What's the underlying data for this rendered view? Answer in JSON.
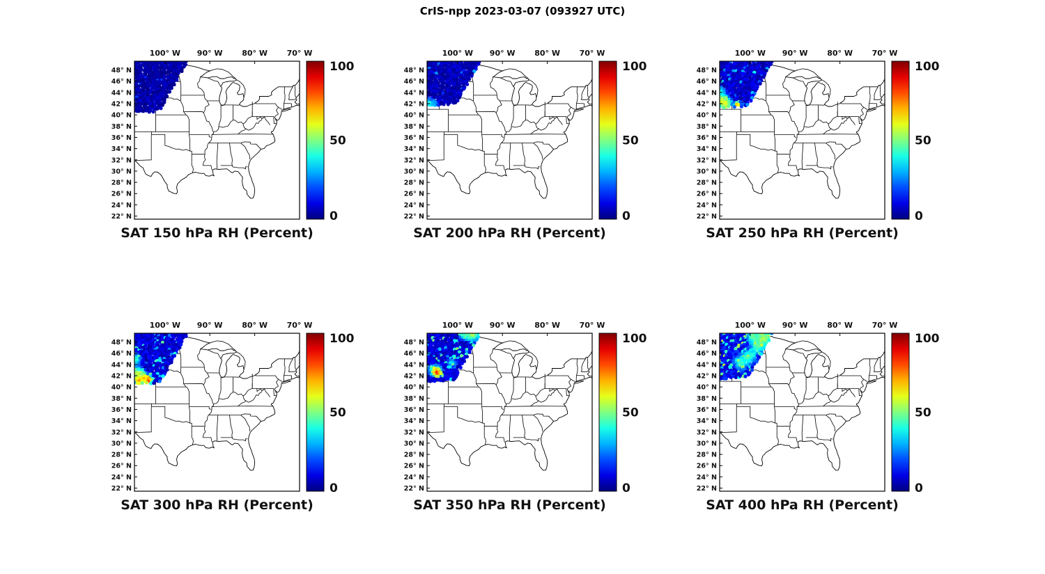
{
  "figure": {
    "title": "CrIS-npp 2023-03-07 (093927 UTC)",
    "background": "#ffffff"
  },
  "chart_data": {
    "type": "scatter",
    "variable": "RH (Percent)",
    "levels_hPa": [
      150,
      200,
      250,
      300,
      350,
      400
    ],
    "map": {
      "lon_range_deg": [
        -106.8,
        -70.0
      ],
      "lat_range_deg": [
        21.45,
        49.55
      ],
      "x_tick_lons": [
        -100,
        -90,
        -80,
        -70
      ],
      "x_tick_labels": [
        "100° W",
        "90° W",
        "80° W",
        "70° W"
      ],
      "y_tick_lats": [
        48,
        46,
        44,
        42,
        40,
        38,
        36,
        34,
        32,
        30,
        28,
        26,
        24,
        22
      ],
      "y_tick_labels": [
        "48° N",
        "46° N",
        "44° N",
        "42° N",
        "40° N",
        "38° N",
        "36° N",
        "34° N",
        "32° N",
        "30° N",
        "28° N",
        "26° N",
        "24° N",
        "22° N"
      ]
    },
    "colorbar": {
      "min": 0,
      "max": 100,
      "tick_labels": [
        "100",
        "50",
        "0"
      ],
      "colormap": "jet"
    },
    "panels": [
      {
        "pressure_hPa": 150,
        "title": "SAT 150 hPa RH (Percent)",
        "swath": {
          "lat_min": 40.3,
          "background_rh": [
            1,
            8
          ],
          "speckle": {
            "fraction": 0.015,
            "rh_range": [
              10,
              22
            ]
          },
          "features": []
        }
      },
      {
        "pressure_hPa": 200,
        "title": "SAT 200 hPa RH (Percent)",
        "swath": {
          "lat_min": 41.6,
          "background_rh": [
            2,
            10
          ],
          "speckle": {
            "fraction": 0.04,
            "rh_range": [
              14,
              32
            ]
          },
          "features": [
            {
              "lon": -106.3,
              "lat": 42.1,
              "rh": 42,
              "r": 0.6
            },
            {
              "lon": -105.1,
              "lat": 41.9,
              "rh": 32,
              "r": 0.5
            }
          ]
        }
      },
      {
        "pressure_hPa": 250,
        "title": "SAT 250 hPa RH (Percent)",
        "swath": {
          "lat_min": 41.2,
          "background_rh": [
            3,
            13
          ],
          "speckle": {
            "fraction": 0.06,
            "rh_range": [
              18,
              40
            ]
          },
          "features": [
            {
              "lon": -106.4,
              "lat": 42.6,
              "rh": 55,
              "r": 0.9
            },
            {
              "lon": -105.4,
              "lat": 41.9,
              "rh": 62,
              "r": 0.7
            },
            {
              "lon": -102.8,
              "lat": 41.8,
              "rh": 72,
              "r": 0.4
            },
            {
              "lon": -106.6,
              "lat": 44.2,
              "rh": 40,
              "r": 0.6
            }
          ]
        }
      },
      {
        "pressure_hPa": 300,
        "title": "SAT 300 hPa RH (Percent)",
        "swath": {
          "lat_min": 40.4,
          "background_rh": [
            4,
            15
          ],
          "speckle": {
            "fraction": 0.1,
            "rh_range": [
              22,
              48
            ]
          },
          "features": [
            {
              "lon": -103.6,
              "lat": 41.2,
              "rh": 88,
              "r": 0.5
            },
            {
              "lon": -104.6,
              "lat": 41.6,
              "rh": 70,
              "r": 0.6
            },
            {
              "lon": -106.0,
              "lat": 42.4,
              "rh": 58,
              "r": 0.8
            },
            {
              "lon": -106.6,
              "lat": 44.8,
              "rh": 45,
              "r": 0.7
            },
            {
              "lon": -105.8,
              "lat": 41.0,
              "rh": 75,
              "r": 0.5
            }
          ]
        }
      },
      {
        "pressure_hPa": 350,
        "title": "SAT 350 hPa RH (Percent)",
        "swath": {
          "lat_min": 40.9,
          "background_rh": [
            4,
            14
          ],
          "speckle": {
            "fraction": 0.12,
            "rh_range": [
              24,
              52
            ]
          },
          "features": [
            {
              "lon": -104.4,
              "lat": 42.4,
              "rh": 96,
              "r": 0.45
            },
            {
              "lon": -104.8,
              "lat": 42.8,
              "rh": 70,
              "r": 0.7
            },
            {
              "lon": -96.6,
              "lat": 49.3,
              "rh": 55,
              "r": 0.9
            },
            {
              "lon": -98.3,
              "lat": 49.1,
              "rh": 45,
              "r": 0.6
            },
            {
              "lon": -101.2,
              "lat": 44.2,
              "rh": 40,
              "r": 0.5
            }
          ]
        }
      },
      {
        "pressure_hPa": 400,
        "title": "SAT 400 hPa RH (Percent)",
        "swath": {
          "lat_min": 41.4,
          "background_rh": [
            6,
            20
          ],
          "speckle": {
            "fraction": 0.2,
            "rh_range": [
              28,
              58
            ]
          },
          "features": [
            {
              "lon": -96.9,
              "lat": 48.6,
              "rh": 55,
              "r": 1.0
            },
            {
              "lon": -98.2,
              "lat": 47.2,
              "rh": 48,
              "r": 0.9
            },
            {
              "lon": -100.3,
              "lat": 45.3,
              "rh": 45,
              "r": 0.9
            },
            {
              "lon": -102.0,
              "lat": 44.2,
              "rh": 42,
              "r": 0.8
            },
            {
              "lon": -99.3,
              "lat": 48.9,
              "rh": 50,
              "r": 0.7
            }
          ]
        }
      }
    ]
  }
}
